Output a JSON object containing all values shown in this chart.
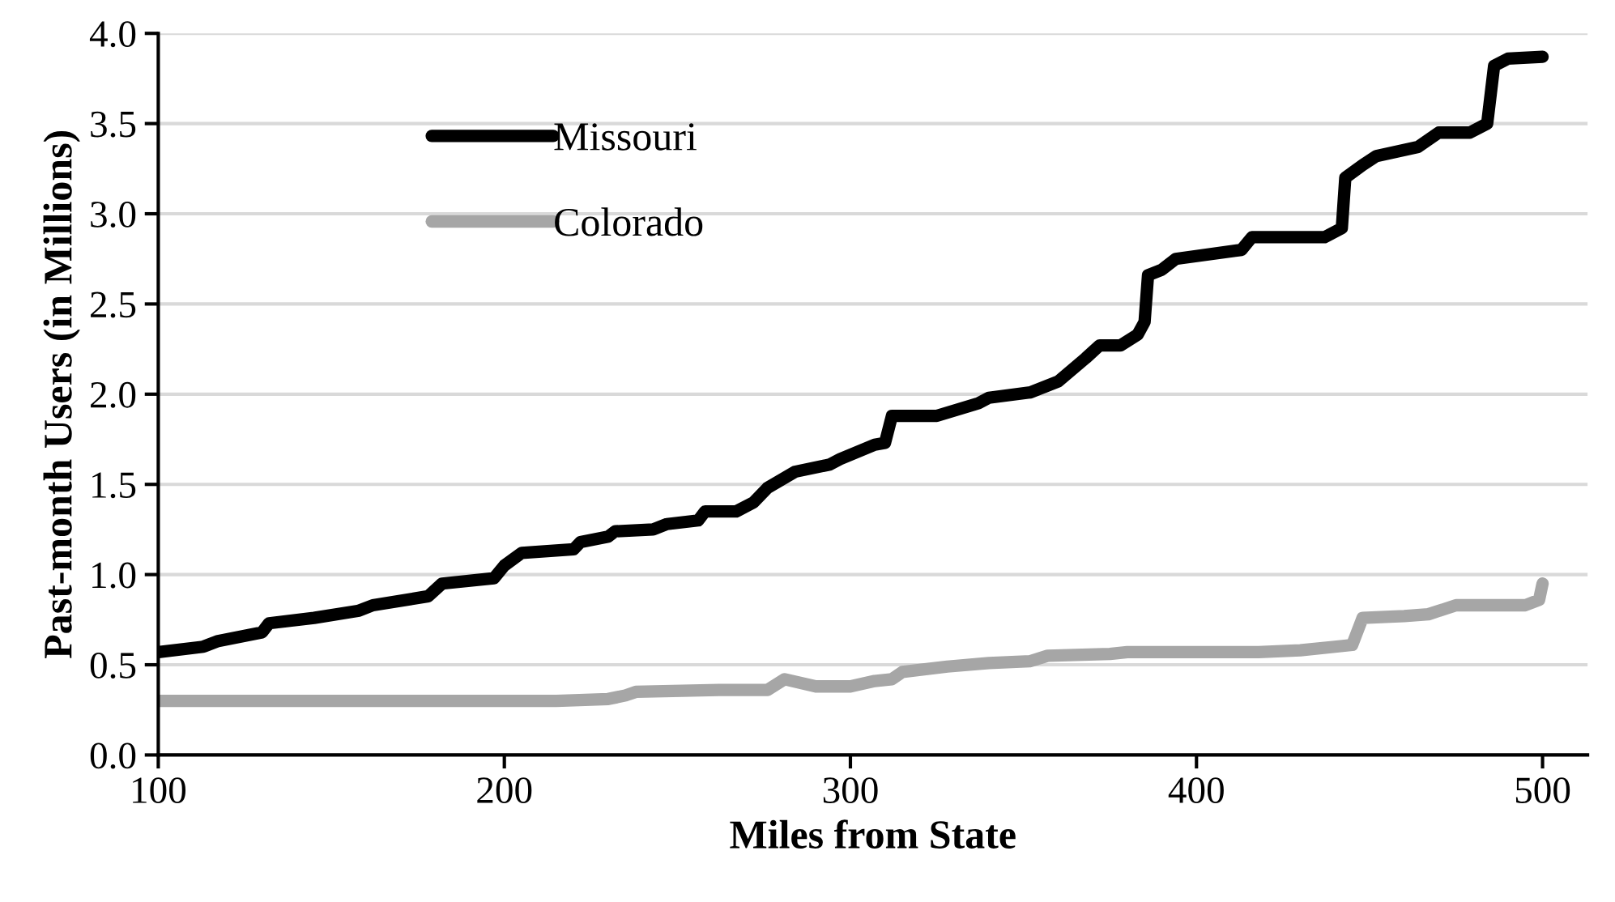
{
  "chart_data": {
    "type": "line",
    "xlabel": "Miles from State",
    "ylabel": "Past-month Users (in Millions)",
    "xlim": [
      100,
      513
    ],
    "xticks": [
      100,
      200,
      300,
      400,
      500
    ],
    "ylim": [
      0,
      4
    ],
    "yticks": [
      {
        "value": 0,
        "label": "0.0"
      },
      {
        "value": 0.5,
        "label": "0.5"
      },
      {
        "value": 1,
        "label": "1.0"
      },
      {
        "value": 1.5,
        "label": "1.5"
      },
      {
        "value": 2,
        "label": "2.0"
      },
      {
        "value": 2.5,
        "label": "2.5"
      },
      {
        "value": 3,
        "label": "3.0"
      },
      {
        "value": 3.5,
        "label": "3.5"
      },
      {
        "value": 4,
        "label": "4.0"
      }
    ],
    "grid": "y",
    "legend": "top left",
    "marker": "none",
    "line_style": "solid",
    "series": [
      {
        "name": "Missouri",
        "color": "#000000",
        "x": [
          100,
          113,
          117,
          130,
          132,
          145,
          158,
          162,
          178,
          182,
          197,
          200,
          205,
          220,
          222,
          230,
          232,
          243,
          247,
          256,
          258,
          267,
          272,
          276,
          284,
          294,
          297,
          307,
          310,
          312,
          325,
          337,
          340,
          352,
          360,
          368,
          372,
          378,
          383,
          385,
          386,
          390,
          394,
          413,
          416,
          437,
          442,
          443,
          448,
          452,
          464,
          470,
          479,
          484,
          486,
          490,
          500
        ],
        "values": [
          0.57,
          0.6,
          0.63,
          0.68,
          0.73,
          0.76,
          0.8,
          0.83,
          0.88,
          0.95,
          0.98,
          1.05,
          1.12,
          1.14,
          1.18,
          1.21,
          1.24,
          1.25,
          1.28,
          1.3,
          1.35,
          1.35,
          1.4,
          1.48,
          1.57,
          1.61,
          1.64,
          1.72,
          1.73,
          1.88,
          1.88,
          1.95,
          1.98,
          2.01,
          2.07,
          2.2,
          2.27,
          2.27,
          2.33,
          2.4,
          2.66,
          2.69,
          2.75,
          2.8,
          2.87,
          2.87,
          2.92,
          3.2,
          3.27,
          3.32,
          3.37,
          3.45,
          3.45,
          3.5,
          3.82,
          3.86,
          3.87
        ]
      },
      {
        "name": "Colorado",
        "color": "#a6a6a6",
        "x": [
          100,
          215,
          230,
          235,
          238,
          262,
          276,
          281,
          290,
          300,
          307,
          312,
          315,
          328,
          340,
          352,
          357,
          375,
          380,
          418,
          430,
          440,
          445,
          448,
          460,
          467,
          475,
          495,
          499,
          500
        ],
        "values": [
          0.3,
          0.3,
          0.31,
          0.33,
          0.35,
          0.36,
          0.36,
          0.42,
          0.38,
          0.38,
          0.41,
          0.42,
          0.46,
          0.49,
          0.51,
          0.52,
          0.55,
          0.56,
          0.57,
          0.57,
          0.58,
          0.6,
          0.61,
          0.76,
          0.77,
          0.78,
          0.83,
          0.83,
          0.86,
          0.95
        ]
      }
    ]
  }
}
